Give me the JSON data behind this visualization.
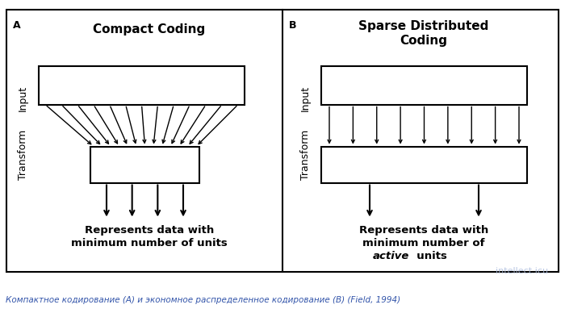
{
  "bg_color": "#ffffff",
  "fig_width": 7.0,
  "fig_height": 3.88,
  "dpi": 100,
  "panel_A": {
    "label": "A",
    "title": "Compact Coding",
    "input_label": "Input",
    "transform_label": "Transform",
    "bottom_text_line1": "Represents data with",
    "bottom_text_line2": "minimum number of units",
    "fan_arrows_count": 13,
    "output_arrows_count": 4
  },
  "panel_B": {
    "label": "B",
    "title_line1": "Sparse Distributed",
    "title_line2": "Coding",
    "input_label": "Input",
    "transform_label": "Transform",
    "bottom_text_line1": "Represents data with",
    "bottom_text_line2": "minimum number of",
    "bottom_text_line3_italic": "active",
    "bottom_text_line3_normal": "  units",
    "parallel_arrows_count": 9,
    "output_arrows_count": 2
  },
  "caption": "Компактное кодирование (A) и экономное распределенное кодирование (B) (Field, 1994)",
  "caption_color": "#3355aa",
  "watermark_text": "intellect.icu",
  "watermark_color": "#aabbdd"
}
